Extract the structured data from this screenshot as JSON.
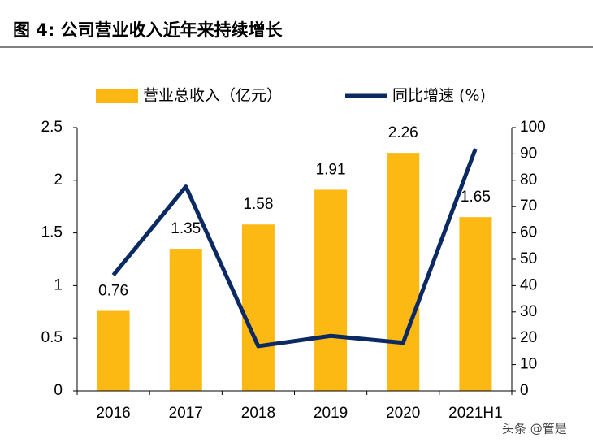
{
  "chart_data": {
    "type": "bar-line",
    "title": "图 4: 公司营业收入近年来持续增长",
    "watermark": "头条 @管是",
    "categories": [
      "2016",
      "2017",
      "2018",
      "2019",
      "2020",
      "2021H1"
    ],
    "series": [
      {
        "name": "营业总收入（亿元）",
        "type": "bar",
        "color": "#fdb913",
        "values": [
          0.76,
          1.35,
          1.58,
          1.91,
          2.26,
          1.65
        ]
      },
      {
        "name": "同比增速 (%)",
        "type": "line",
        "axis": "y2",
        "color": "#0b2a63",
        "values": [
          44,
          77.6,
          17,
          20.9,
          18.3,
          92
        ]
      }
    ],
    "ylim": [
      0,
      2.5
    ],
    "yticks": [
      0,
      0.5,
      1,
      1.5,
      2,
      2.5
    ],
    "y2lim": [
      0,
      100
    ],
    "y2ticks": [
      0,
      10,
      20,
      30,
      40,
      50,
      60,
      70,
      80,
      90,
      100
    ]
  }
}
